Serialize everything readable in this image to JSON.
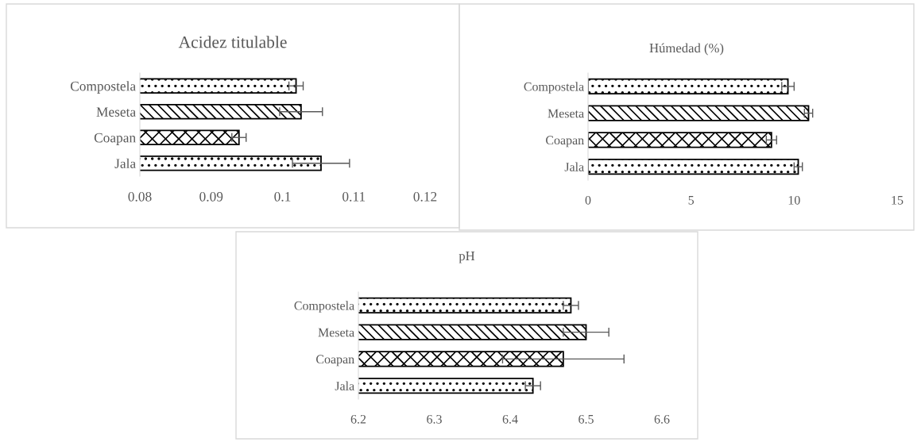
{
  "chart_data": [
    {
      "type": "bar",
      "orientation": "horizontal",
      "title": "Acidez titulable",
      "categories": [
        "Compostela",
        "Meseta",
        "Coapan",
        "Jala"
      ],
      "values": [
        0.1019,
        0.1026,
        0.0939,
        0.1054
      ],
      "errors": [
        0.001,
        0.003,
        0.001,
        0.004
      ],
      "colors": [
        "#000000",
        "#000000",
        "#000000",
        "#000000"
      ],
      "xlim": [
        0.08,
        0.12
      ],
      "xticks": [
        0.08,
        0.09,
        0.1,
        0.11,
        0.12
      ]
    },
    {
      "type": "bar",
      "orientation": "horizontal",
      "title": "Húmedad (%)",
      "categories": [
        "Compostela",
        "Meseta",
        "Coapan",
        "Jala"
      ],
      "values": [
        9.7,
        10.7,
        8.9,
        10.2
      ],
      "errors": [
        0.3,
        0.2,
        0.25,
        0.2
      ],
      "colors": [
        "#000000",
        "#000000",
        "#000000",
        "#000000"
      ],
      "xlim": [
        0,
        15
      ],
      "xticks": [
        0,
        5,
        10,
        15
      ]
    },
    {
      "type": "bar",
      "orientation": "horizontal",
      "title": "pH",
      "categories": [
        "Compostela",
        "Meseta",
        "Coapan",
        "Jala"
      ],
      "values": [
        6.48,
        6.5,
        6.47,
        6.43
      ],
      "errors": [
        0.01,
        0.03,
        0.08,
        0.01
      ],
      "colors": [
        "#000000",
        "#000000",
        "#000000",
        "#000000"
      ],
      "xlim": [
        6.2,
        6.6
      ],
      "xticks": [
        6.2,
        6.3,
        6.4,
        6.5,
        6.6
      ]
    }
  ]
}
